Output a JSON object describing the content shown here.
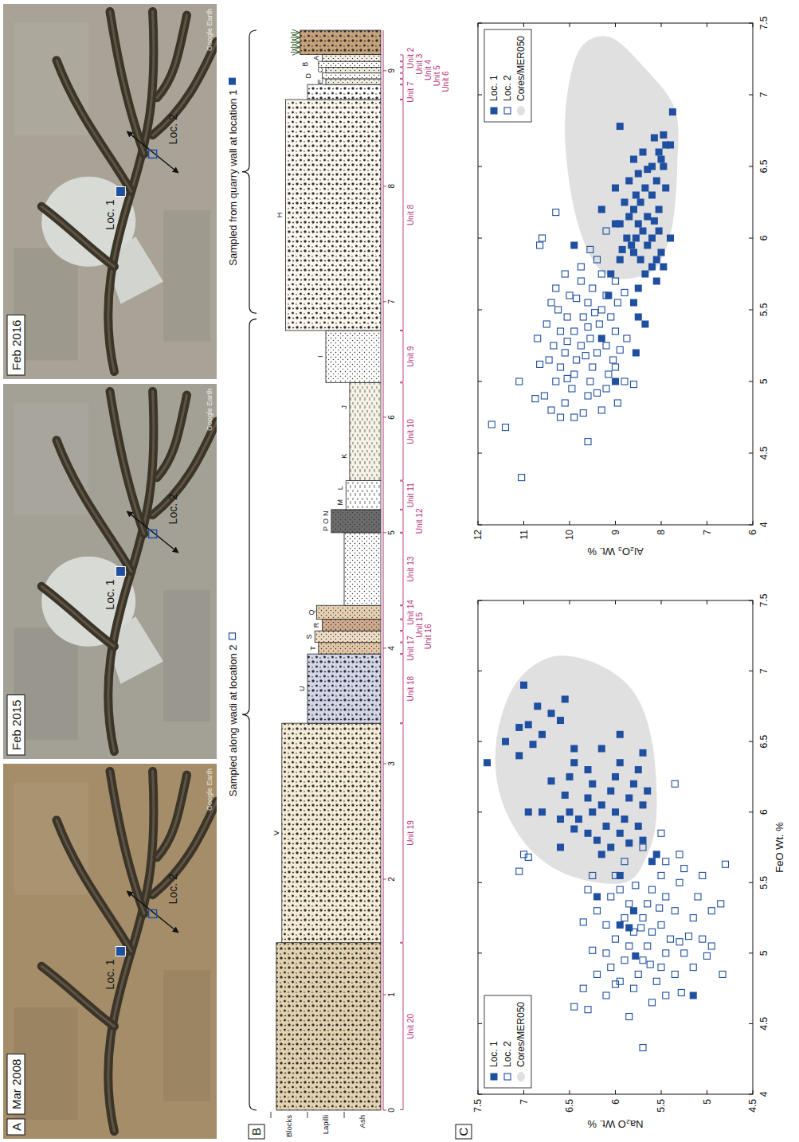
{
  "panel_a": {
    "label": "A",
    "photos": [
      {
        "date": "Mar 2008",
        "quarry": false
      },
      {
        "date": "Feb 2015",
        "quarry": true
      },
      {
        "date": "Feb 2016",
        "quarry": true
      }
    ],
    "loc1": "Loc. 1",
    "loc2": "Loc. 2",
    "attribution": "Google Earth"
  },
  "panel_b": {
    "label": "B",
    "hlim": [
      0,
      9.35
    ],
    "hticks": [
      0,
      1,
      2,
      3,
      4,
      5,
      6,
      7,
      8,
      9
    ],
    "grain_lim": [
      0,
      3
    ],
    "grain_bands": [
      {
        "label": "Ash",
        "from": 0,
        "to": 1
      },
      {
        "label": "Lapilli",
        "from": 1,
        "to": 2
      },
      {
        "label": "Blocks",
        "from": 2,
        "to": 3
      }
    ],
    "layers": [
      {
        "unit": "Unit 20",
        "letters": [],
        "bottom": 0,
        "top": 1.45,
        "grain": 2.85,
        "color": "#e3d2b0"
      },
      {
        "unit": "Unit 19",
        "letters": [
          "V"
        ],
        "bottom": 1.45,
        "top": 3.35,
        "grain": 2.7,
        "color": "#f4ecd6"
      },
      {
        "unit": "Unit 18",
        "letters": [
          "U"
        ],
        "bottom": 3.35,
        "top": 3.95,
        "grain": 2.0,
        "color": "#d3d5e8"
      },
      {
        "unit": "Unit 17",
        "letters": [
          "T"
        ],
        "bottom": 3.95,
        "top": 4.05,
        "grain": 1.7,
        "color": "#e2c6a6"
      },
      {
        "unit": "Unit 16",
        "letters": [
          "S"
        ],
        "bottom": 4.05,
        "top": 4.15,
        "grain": 1.8,
        "color": "#efdcc4"
      },
      {
        "unit": "Unit 15",
        "letters": [
          "R"
        ],
        "bottom": 4.15,
        "top": 4.25,
        "grain": 1.6,
        "color": "#d0a98c"
      },
      {
        "unit": "Unit 14",
        "letters": [
          "Q"
        ],
        "bottom": 4.25,
        "top": 4.37,
        "grain": 1.75,
        "color": "#e6d0b2"
      },
      {
        "unit": "Unit 13",
        "letters": [],
        "bottom": 4.37,
        "top": 5.0,
        "grain": 1.0,
        "color": "#ffffff"
      },
      {
        "unit": "Unit 12",
        "letters": [
          "P",
          "O",
          "N"
        ],
        "bottom": 5.0,
        "top": 5.2,
        "grain": 1.35,
        "color": "#6b6b6b"
      },
      {
        "unit": "Unit 11",
        "letters": [
          "M",
          "L"
        ],
        "bottom": 5.2,
        "top": 5.45,
        "grain": 0.95,
        "color": "#ffffff"
      },
      {
        "unit": "Unit 10",
        "letters": [
          "K",
          "J"
        ],
        "bottom": 5.45,
        "top": 6.3,
        "grain": 0.85,
        "color": "#f6f2e8"
      },
      {
        "unit": "Unit 9",
        "letters": [
          "I"
        ],
        "bottom": 6.3,
        "top": 6.75,
        "grain": 1.5,
        "color": "#ffffff"
      },
      {
        "unit": "Unit 8",
        "letters": [
          "H"
        ],
        "bottom": 6.75,
        "top": 8.75,
        "grain": 2.6,
        "color": "#fbf7ee"
      },
      {
        "unit": "Unit 7",
        "letters": [],
        "bottom": 8.75,
        "top": 8.88,
        "grain": 2.0,
        "color": "#ffffff"
      },
      {
        "unit": "Unit 6",
        "letters": [
          "E"
        ],
        "bottom": 8.88,
        "top": 8.93,
        "grain": 1.5,
        "color": "#f2eee4"
      },
      {
        "unit": "Unit 5",
        "letters": [
          "D"
        ],
        "bottom": 8.93,
        "top": 8.98,
        "grain": 1.6,
        "color": "#ffffff"
      },
      {
        "unit": "Unit 4",
        "letters": [
          "C"
        ],
        "bottom": 8.98,
        "top": 9.03,
        "grain": 1.5,
        "color": "#f2eee4"
      },
      {
        "unit": "Unit 3",
        "letters": [
          "B"
        ],
        "bottom": 9.03,
        "top": 9.08,
        "grain": 1.7,
        "color": "#ffffff"
      },
      {
        "unit": "Unit 2",
        "letters": [
          "A"
        ],
        "bottom": 9.08,
        "top": 9.14,
        "grain": 1.6,
        "color": "#f2eee4"
      },
      {
        "letters": [],
        "bottom": 9.14,
        "top": 9.35,
        "grain": 2.2,
        "color": "#c6a27a"
      }
    ],
    "sampling": [
      {
        "text": "Sampled from quarry wall at location 1",
        "marker": "filled",
        "from": 6.9,
        "to": 9.35
      },
      {
        "text": "Sampled along wadi at location 2",
        "marker": "open",
        "from": 0,
        "to": 6.85
      }
    ]
  },
  "panel_c": {
    "label": "C"
  },
  "chart_data": [
    {
      "type": "scatter",
      "y_label": "Al₂O₃ Wt. %",
      "xlim": [
        4,
        7.5
      ],
      "xticks": [
        4,
        4.5,
        5,
        5.5,
        6,
        6.5,
        7,
        7.5
      ],
      "ylim": [
        6,
        12
      ],
      "yticks": [
        6,
        7,
        8,
        9,
        10,
        11,
        12
      ],
      "legend": "upper right",
      "series": [
        {
          "name": "Loc. 1",
          "color": "#1f4fa0",
          "marker": "square",
          "x": [
            6.88,
            6.72,
            6.7,
            6.6,
            6.65,
            6.55,
            6.5,
            6.48,
            6.4,
            6.35,
            6.3,
            6.25,
            6.2,
            6.15,
            6.1,
            6.05,
            6.0,
            5.95,
            5.9,
            5.85,
            5.8,
            5.75,
            5.7,
            5.65,
            6.2,
            6.12,
            6.0,
            5.9,
            5.8,
            6.3,
            6.45,
            6.6,
            6.55,
            6.4,
            6.25,
            6.1,
            6.0,
            5.92,
            5.85,
            6.78,
            6.65,
            6.35,
            6.05,
            5.95,
            6.15,
            5.75,
            5.6,
            5.55,
            5.45,
            5.4,
            5.3,
            5.2,
            5.0,
            5.95,
            6.2,
            6.1,
            6.35,
            6.5,
            6.0,
            5.85
          ],
          "values": [
            7.75,
            7.95,
            8.15,
            8.05,
            7.9,
            8.0,
            8.2,
            8.3,
            8.1,
            8.35,
            8.2,
            8.45,
            8.6,
            8.3,
            8.5,
            8.4,
            8.55,
            8.3,
            8.6,
            8.45,
            8.2,
            8.35,
            8.1,
            8.5,
            8.05,
            8.15,
            8.2,
            8.0,
            7.95,
            8.55,
            8.5,
            8.4,
            8.6,
            8.7,
            8.8,
            8.9,
            8.75,
            8.85,
            8.9,
            8.9,
            7.8,
            7.9,
            8.05,
            8.65,
            8.7,
            9.1,
            9.15,
            8.6,
            8.5,
            8.35,
            9.3,
            8.55,
            9.0,
            9.9,
            9.3,
            9.0,
            9.0,
            7.95,
            7.8,
            8.1
          ]
        },
        {
          "name": "Loc. 2",
          "color": "#1f4fa0",
          "marker": "open-square",
          "x": [
            4.7,
            4.68,
            5.0,
            4.33,
            4.58,
            6.18,
            5.95,
            6.0,
            5.3,
            5.15,
            5.4,
            5.55,
            5.65,
            5.75,
            4.9,
            4.8,
            5.0,
            5.1,
            5.2,
            5.25,
            5.35,
            5.45,
            5.5,
            5.6,
            4.85,
            4.95,
            5.05,
            5.15,
            5.25,
            5.35,
            5.45,
            5.55,
            5.65,
            5.7,
            4.75,
            4.78,
            4.9,
            5.0,
            5.1,
            5.2,
            5.3,
            5.4,
            5.5,
            5.6,
            5.75,
            4.8,
            4.95,
            5.05,
            5.15,
            5.25,
            5.35,
            5.45,
            5.55,
            4.85,
            5.0,
            5.1,
            5.3,
            5.7,
            5.85,
            5.92,
            6.05,
            4.75,
            5.12,
            5.28,
            4.88,
            5.38,
            5.58,
            5.18,
            5.02,
            4.92,
            5.48,
            5.22,
            4.98,
            5.62,
            5.8
          ],
          "values": [
            11.7,
            11.4,
            11.1,
            11.05,
            9.6,
            10.3,
            10.65,
            10.6,
            10.7,
            10.45,
            10.5,
            10.4,
            10.3,
            10.1,
            10.55,
            10.4,
            10.3,
            10.2,
            10.1,
            10.35,
            10.2,
            10.05,
            10.25,
            10.0,
            10.1,
            9.95,
            9.9,
            9.85,
            9.75,
            9.9,
            9.7,
            9.6,
            9.5,
            9.75,
            9.9,
            9.7,
            9.6,
            9.55,
            9.5,
            9.4,
            9.55,
            9.35,
            9.3,
            9.2,
            9.3,
            9.3,
            9.2,
            9.15,
            9.05,
            9.2,
            9.0,
            9.1,
            8.95,
            8.95,
            8.8,
            9.0,
            8.75,
            9.0,
            9.4,
            9.55,
            9.2,
            10.2,
            10.65,
            10.05,
            10.75,
            9.6,
            9.85,
            9.65,
            10.05,
            9.4,
            9.45,
            8.9,
            8.6,
            8.8,
            9.75
          ]
        },
        {
          "name": "Cores/MER050",
          "type": "area",
          "color": "#e0e0e0",
          "x": [
            5.75,
            5.72,
            5.85,
            6.2,
            6.7,
            7.1,
            7.35,
            7.4,
            7.2,
            6.9,
            6.5,
            6.1,
            5.85
          ],
          "values": [
            8.3,
            9.0,
            9.5,
            9.9,
            10.1,
            10.0,
            9.7,
            9.1,
            8.4,
            7.7,
            7.65,
            7.75,
            8.0
          ]
        }
      ]
    },
    {
      "type": "scatter",
      "x_label": "FeO Wt. %",
      "y_label": "Na₂O Wt. %",
      "xlim": [
        4,
        7.5
      ],
      "xticks": [
        4,
        4.5,
        5,
        5.5,
        6,
        6.5,
        7,
        7.5
      ],
      "ylim": [
        4.5,
        7.5
      ],
      "yticks": [
        4.5,
        5,
        5.5,
        6,
        6.5,
        7,
        7.5
      ],
      "legend": "upper left",
      "series": [
        {
          "name": "Loc. 1",
          "color": "#1f4fa0",
          "marker": "square",
          "x": [
            6.35,
            6.9,
            6.5,
            6.6,
            6.62,
            6.4,
            6.75,
            6.55,
            6.48,
            6.7,
            6.8,
            6.65,
            6.45,
            6.35,
            6.25,
            6.1,
            6.0,
            6.2,
            5.95,
            5.85,
            6.05,
            5.9,
            5.8,
            5.75,
            5.7,
            6.15,
            6.25,
            6.35,
            6.0,
            5.95,
            5.85,
            5.78,
            6.1,
            6.2,
            6.3,
            5.9,
            5.8,
            5.65,
            6.05,
            6.15,
            5.7,
            6.0,
            6.12,
            5.95,
            6.22,
            6.0,
            5.75,
            5.55,
            5.4,
            5.3,
            5.2,
            5.18,
            4.98,
            4.7,
            6.45,
            6.55,
            6.42,
            6.0,
            6.3,
            5.88
          ],
          "values": [
            7.4,
            7.0,
            7.2,
            7.05,
            6.95,
            7.05,
            6.85,
            6.8,
            6.9,
            6.7,
            6.55,
            6.6,
            6.45,
            6.45,
            6.5,
            6.3,
            6.25,
            6.25,
            6.4,
            6.3,
            6.15,
            6.1,
            6.2,
            6.05,
            6.15,
            6.05,
            6.0,
            5.95,
            6.0,
            5.9,
            5.95,
            5.85,
            5.85,
            5.8,
            5.75,
            5.75,
            5.7,
            5.6,
            5.7,
            5.65,
            5.55,
            6.5,
            6.55,
            6.6,
            6.7,
            6.95,
            6.6,
            5.95,
            6.2,
            5.8,
            5.95,
            5.85,
            5.78,
            5.15,
            6.15,
            5.95,
            5.7,
            6.8,
            6.3,
            6.45
          ]
        },
        {
          "name": "Loc. 2",
          "color": "#1f4fa0",
          "marker": "open-square",
          "x": [
            4.33,
            4.85,
            5.63,
            5.35,
            4.98,
            5.05,
            6.2,
            5.7,
            5.68,
            5.58,
            4.6,
            4.62,
            4.75,
            4.85,
            4.7,
            4.9,
            5.0,
            5.1,
            5.2,
            5.3,
            5.45,
            5.55,
            4.8,
            4.95,
            5.05,
            5.15,
            5.25,
            5.35,
            5.45,
            5.55,
            5.65,
            4.75,
            4.85,
            4.95,
            5.05,
            5.15,
            5.25,
            5.35,
            5.45,
            5.55,
            5.65,
            4.8,
            4.9,
            5.0,
            5.1,
            5.2,
            5.3,
            5.4,
            5.5,
            5.6,
            4.7,
            4.85,
            5.0,
            5.12,
            5.25,
            5.4,
            5.55,
            4.9,
            5.1,
            5.3,
            4.65,
            4.55,
            5.75,
            5.85,
            5.7,
            4.78,
            5.02,
            5.22,
            5.4,
            4.92,
            5.18,
            5.32,
            5.48,
            5.08,
            4.72
          ],
          "values": [
            5.7,
            4.83,
            4.8,
            4.85,
            5.0,
            4.95,
            5.35,
            7.0,
            6.95,
            7.05,
            6.3,
            6.45,
            6.35,
            6.2,
            6.1,
            6.05,
            6.1,
            6.0,
            6.1,
            6.2,
            6.3,
            6.25,
            5.95,
            5.9,
            5.85,
            5.8,
            5.9,
            5.85,
            5.95,
            6.0,
            5.9,
            5.8,
            5.75,
            5.7,
            5.65,
            5.6,
            5.7,
            5.65,
            5.6,
            5.5,
            5.45,
            5.55,
            5.5,
            5.45,
            5.4,
            5.5,
            5.35,
            5.45,
            5.3,
            5.25,
            5.45,
            5.35,
            5.25,
            5.2,
            5.15,
            5.1,
            5.05,
            5.15,
            5.05,
            4.95,
            5.6,
            5.85,
            5.7,
            5.5,
            5.3,
            6.0,
            6.25,
            6.35,
            6.05,
            5.62,
            5.72,
            5.52,
            5.78,
            5.3,
            5.28
          ]
        },
        {
          "name": "Cores/MER050",
          "type": "area",
          "color": "#e0e0e0",
          "x": [
            5.5,
            5.55,
            5.75,
            6.1,
            6.5,
            6.9,
            7.1,
            7.05,
            6.85,
            6.5,
            6.0,
            5.7
          ],
          "values": [
            5.9,
            6.5,
            6.95,
            7.25,
            7.3,
            7.1,
            6.7,
            6.2,
            5.8,
            5.6,
            5.55,
            5.65
          ]
        }
      ]
    }
  ]
}
